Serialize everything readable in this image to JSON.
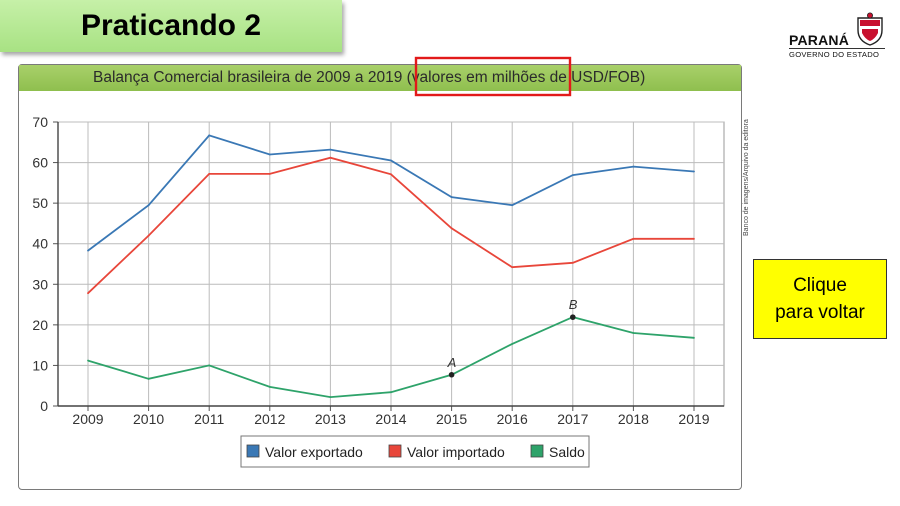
{
  "slide": {
    "title": "Praticando 2",
    "logo_name": "PARANÁ",
    "logo_sub": "GOVERNO DO ESTADO",
    "back_button": {
      "line1": "Clique",
      "line2": "para voltar"
    },
    "credit_text": "Banco de imagens/Arquivo da editora"
  },
  "colors": {
    "exported": "#3a78b5",
    "imported": "#e8463a",
    "saldo": "#2ea36a",
    "highlight_box": "#e21a1a",
    "back_button_bg": "#ffff00",
    "title_bar": "#9bc85a"
  },
  "chart_data": {
    "type": "line",
    "title": "Balança Comercial brasileira de 2009 a 2019 (valores em milhões de USD/FOB)",
    "x": [
      "2009",
      "2010",
      "2011",
      "2012",
      "2013",
      "2014",
      "2015",
      "2016",
      "2017",
      "2018",
      "2019"
    ],
    "ylim": [
      0,
      70
    ],
    "yticks": [
      0,
      10,
      20,
      30,
      40,
      50,
      60,
      70
    ],
    "grid": true,
    "legend_position": "bottom-center",
    "series": [
      {
        "name": "Valor exportado",
        "color": "#3a78b5",
        "values": [
          38.3,
          49.5,
          66.7,
          62.0,
          63.2,
          60.5,
          51.5,
          49.5,
          56.9,
          59.0,
          57.8
        ]
      },
      {
        "name": "Valor importado",
        "color": "#e8463a",
        "values": [
          27.8,
          42.0,
          57.2,
          57.2,
          61.2,
          57.1,
          43.8,
          34.2,
          35.3,
          41.2,
          41.2
        ]
      },
      {
        "name": "Saldo",
        "color": "#2ea36a",
        "values": [
          11.2,
          6.7,
          10.0,
          4.7,
          2.2,
          3.4,
          7.7,
          15.3,
          21.9,
          18.0,
          16.8
        ]
      }
    ],
    "annotations": [
      {
        "label": "A",
        "x": "2015",
        "y": 7.7
      },
      {
        "label": "B",
        "x": "2017",
        "y": 21.9
      }
    ]
  }
}
